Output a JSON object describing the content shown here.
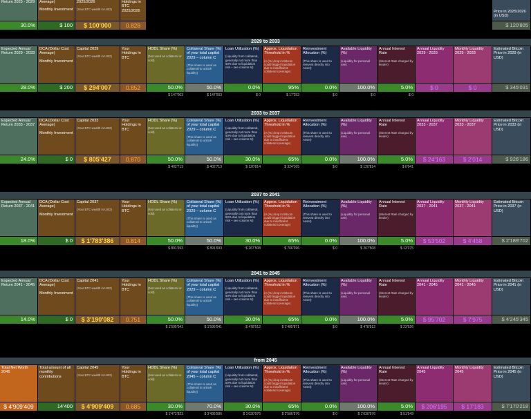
{
  "top": {
    "headers": [
      {
        "title": "Return 2025 - 2029"
      },
      {
        "title": "Average)",
        "sub": "Monthly Investment"
      },
      {
        "title": "2025/2026",
        "note": "(Your BTC wealth in USD)"
      },
      {
        "title": "Holdings in BTC 2025/2026"
      }
    ],
    "values": [
      "30.0%",
      "$ 100",
      "$ 100'000",
      "0.828"
    ],
    "price_header": "Price in 2025/2026 (in USD)",
    "price_value": "$ 120'805"
  },
  "sections": [
    {
      "title": "2029 to 2033",
      "headers": [
        {
          "title": "Expected Annual Return 2029 - 2033"
        },
        {
          "title": "DCA (Dollar Cost Average)",
          "sub": "Monthly Investment"
        },
        {
          "title": "Capital 2029",
          "note": "(Your BTC wealth in USD)"
        },
        {
          "title": "Your Holdings in BTC"
        },
        {
          "title": "HODL Share (%)",
          "note": "(Not used as collateral or sold)"
        },
        {
          "title": "Collateral Share (%) of your total capital 2029 – column C",
          "note": "(This share is used as collateral to unlock liquidity)"
        },
        {
          "title": "Loan Utilization (%)",
          "note": "(Liquidity from collateral, generally not more than 50% due to liquidation risk – see column M)"
        },
        {
          "title": "Approx. Liquidation Threshold in %",
          "note": "(A (%) drop in Bitcoin could trigger liquidation due to insufficient collateral coverage)"
        },
        {
          "title": "Reinvestment Allocation (%)",
          "note": "(This share is used to reinvest directly into Asset)"
        },
        {
          "title": "Available Liquidity (%)",
          "note": "(Liquidity for personal use)"
        },
        {
          "title": "Annual Interest Rate",
          "note": "(Interest Rate charged by lender)"
        },
        {
          "title": "Annual Liquidity 2029 - 2033"
        },
        {
          "title": "Monthly Liquidity 2029 - 2033"
        },
        {
          "title": "Estimated Bitcoin Price in 2029 (in USD)"
        }
      ],
      "values": [
        "28.0%",
        "$ 200",
        "$ 294'007",
        "0.852",
        "50.0%",
        "50.0%",
        "0.0%",
        "95%",
        "0.0%",
        "100.0%",
        "5.0%",
        "$ 0",
        "$ 0",
        "$ 345'031"
      ],
      "sub_values": [
        "$ 147'003",
        "$ 147'003",
        "$ 0",
        "$ 17'252",
        "$ 0",
        "$ 0",
        "$ 0"
      ]
    },
    {
      "title": "2033 to 2037",
      "headers": [
        {
          "title": "Expected Annual Return 2033 - 2037"
        },
        {
          "title": "DCA (Dollar Cost Average)",
          "sub": "Monthly Investment"
        },
        {
          "title": "Capital 2033",
          "note": "(Your BTC wealth in USD)"
        },
        {
          "title": "Your Holdings in BTC"
        },
        {
          "title": "HODL Share (%)",
          "note": "(Not used as collateral or sold)"
        },
        {
          "title": "Collateral Share (%) of your total capital 2029 – column C",
          "note": "(This share is used as collateral to unlock liquidity)"
        },
        {
          "title": "Loan Utilization (%)",
          "note": "(Liquidity from collateral, generally not more than 50% due to liquidation risk – see column M)"
        },
        {
          "title": "Approx. Liquidation Threshold in %",
          "note": "(A (%) drop in Bitcoin could trigger liquidation due to insufficient collateral coverage)"
        },
        {
          "title": "Reinvestment Allocation (%)",
          "note": "(This share is used to reinvest directly into Asset)"
        },
        {
          "title": "Available Liquidity (%)",
          "note": "(Liquidity for personal use)"
        },
        {
          "title": "Annual Interest Rate",
          "note": "(Interest Rate charged by lender)"
        },
        {
          "title": "Annual Liquidity 2033 - 2037"
        },
        {
          "title": "Monthly Liquidity 2033 - 2037"
        },
        {
          "title": "Estimated Bitcoin Price in 2033 (in USD)"
        }
      ],
      "values": [
        "24.0%",
        "$ 0",
        "$ 805'427",
        "0.870",
        "50.0%",
        "50.0%",
        "30.0%",
        "65%",
        "0.0%",
        "100.0%",
        "5.0%",
        "$ 24'163",
        "$ 2'014",
        "$ 926'186"
      ],
      "sub_values": [
        "$ 402'713",
        "$ 402'713",
        "$ 120'814",
        "$ 324'165",
        "$ 0",
        "$ 120'814",
        "$ 6'041"
      ]
    },
    {
      "title": "2037 to 2041",
      "headers": [
        {
          "title": "Expected Annual Return 2037 - 2041"
        },
        {
          "title": "DCA (Dollar Cost Average)",
          "sub": "Monthly Investment"
        },
        {
          "title": "Capital 2037",
          "note": "(Your BTC wealth in USD)"
        },
        {
          "title": "Your Holdings in BTC"
        },
        {
          "title": "HODL Share (%)",
          "note": "(Not used as collateral or sold)"
        },
        {
          "title": "Collateral Share (%) of your total capital 2029 – column C",
          "note": "(This share is used as collateral to unlock liquidity)"
        },
        {
          "title": "Loan Utilization (%)",
          "note": "(Liquidity from collateral, generally not more than 50% due to liquidation risk – see column M)"
        },
        {
          "title": "Approx. Liquidation Threshold in %",
          "note": "(A (%) drop in Bitcoin could trigger liquidation due to insufficient collateral coverage)"
        },
        {
          "title": "Reinvestment Allocation (%)",
          "note": "(This share is used to reinvest directly into Asset)"
        },
        {
          "title": "Available Liquidity (%)",
          "note": "(Liquidity for personal use)"
        },
        {
          "title": "Annual Interest Rate",
          "note": "(Interest Rate charged by lender)"
        },
        {
          "title": "Annual Liquidity 2037 - 2041"
        },
        {
          "title": "Monthly Liquidity 2037 - 2041"
        },
        {
          "title": "Estimated Bitcoin Price in 2037 (in USD)"
        }
      ],
      "values": [
        "18.0%",
        "$ 0",
        "$ 1'783'386",
        "0.814",
        "50.0%",
        "50.0%",
        "30.0%",
        "65%",
        "0.0%",
        "100.0%",
        "5.0%",
        "$ 53'502",
        "$ 4'458",
        "$ 2'189'702"
      ],
      "sub_values": [
        "$ 891'693",
        "$ 891'693",
        "$ 267'508",
        "$ 766'396",
        "$ 0",
        "$ 267'508",
        "$ 13'375"
      ]
    },
    {
      "title": "2041 to 2045",
      "headers": [
        {
          "title": "Expected Annual Return 2041 - 2045"
        },
        {
          "title": "DCA (Dollar Cost Average)",
          "sub": "Monthly Investment"
        },
        {
          "title": "Capital 2041",
          "note": "(Your BTC wealth in USD)"
        },
        {
          "title": "Your Holdings in BTC"
        },
        {
          "title": "HODL Share (%)",
          "note": "(Not used as collateral or sold)"
        },
        {
          "title": "Collateral Share (%) of your total capital 2029 – column C",
          "note": "(This share is used as collateral to unlock liquidity)"
        },
        {
          "title": "Loan Utilization (%)",
          "note": "(Liquidity from collateral, generally not more than 50% due to liquidation risk – see column M)"
        },
        {
          "title": "Approx. Liquidation Threshold in %",
          "note": "(A (%) drop in Bitcoin could trigger liquidation due to insufficient collateral coverage)"
        },
        {
          "title": "Reinvestment Allocation (%)",
          "note": "(This share is used to reinvest directly into Asset)"
        },
        {
          "title": "Available Liquidity (%)",
          "note": "(Liquidity for personal use)"
        },
        {
          "title": "Annual Interest Rate",
          "note": "(Interest Rate charged by lender)"
        },
        {
          "title": "Annual Liquidity 2041 - 2045"
        },
        {
          "title": "Monthly Liquidity 2041 - 2045"
        },
        {
          "title": "Estimated Bitcoin Price in 2041 (in USD)"
        }
      ],
      "values": [
        "14.0%",
        "$ 0",
        "$ 3'190'082",
        "0.751",
        "50.0%",
        "50.0%",
        "30.0%",
        "65%",
        "0.0%",
        "100.0%",
        "5.0%",
        "$ 95'702",
        "$ 7'975",
        "$ 4'245'345"
      ],
      "sub_values": [
        "$ 1'595'041",
        "$ 1'595'041",
        "$ 478'512",
        "$ 1'485'871",
        "$ 0",
        "$ 478'512",
        "$ 23'926"
      ]
    },
    {
      "title": "from 2045",
      "headers": [
        {
          "title": "Total Net Worth 2045"
        },
        {
          "title": "Total amount of all monthly contributions"
        },
        {
          "title": "Capital 2045",
          "note": "(Your BTC wealth in USD)"
        },
        {
          "title": "Your Holdings in BTC"
        },
        {
          "title": "HODL Share (%)",
          "note": "(Not used as collateral or sold)"
        },
        {
          "title": "Collateral Share (%) of your total capital 2045 – column C",
          "note": "(This share is used as collateral to unlock liquidity)"
        },
        {
          "title": "Loan Utilization (%)",
          "note": "(Liquidity from collateral, generally not more than 50% due to liquidation risk – see column M)"
        },
        {
          "title": "Approx. Liquidation Threshold in %",
          "note": "(A (%) drop in Bitcoin could trigger liquidation due to insufficient collateral coverage)"
        },
        {
          "title": "Reinvestment Allocation (%)",
          "note": "(This share is used to reinvest directly into Asset)"
        },
        {
          "title": "Available Liquidity (%)",
          "note": "(Liquidity for personal use)"
        },
        {
          "title": "Annual Interest Rate",
          "note": "(Interest Rate charged by lender)"
        },
        {
          "title": "Annual Liquidity 2045"
        },
        {
          "title": "Monthly Liquidity 2045"
        },
        {
          "title": "Estimated Bitcoin Price in 2045 (in USD)"
        }
      ],
      "values": [
        "$ 4'909'409",
        "14'400",
        "$ 4'909'409",
        "0.685",
        "30.0%",
        "70.0%",
        "30.0%",
        "65%",
        "0.0%",
        "100.0%",
        "5.0%",
        "$ 206'195",
        "$ 17'183",
        "$ 7'170'218"
      ],
      "sub_values": [
        "$ 1'472'823",
        "$ 3'436'586",
        "$ 1'030'976",
        "$ 2'506'576",
        "$ 0",
        "$ 1'030'976",
        "$ 51'549"
      ]
    }
  ]
}
